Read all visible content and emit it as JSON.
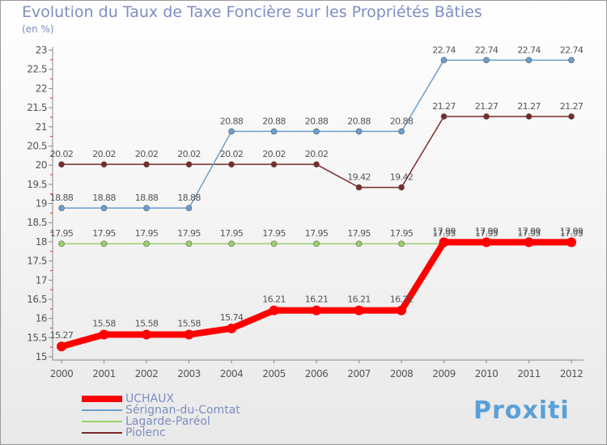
{
  "chart_data": {
    "type": "line",
    "title": "Evolution du Taux de Taxe Foncière sur les Propriétés Bâties",
    "unit_label": "(en %)",
    "xlabel": "",
    "ylabel": "",
    "x": [
      "2000",
      "2001",
      "2002",
      "2003",
      "2004",
      "2005",
      "2006",
      "2007",
      "2008",
      "2009",
      "2010",
      "2011",
      "2012"
    ],
    "ylim": [
      15,
      23
    ],
    "yticks": [
      "15",
      "15.5",
      "16",
      "16.5",
      "17",
      "17.5",
      "18",
      "18.5",
      "19",
      "19.5",
      "20",
      "20.5",
      "21",
      "21.5",
      "22",
      "22.5",
      "23"
    ],
    "series": [
      {
        "name": "UCHAUX",
        "color": "#ff0000",
        "values": [
          15.27,
          15.58,
          15.58,
          15.58,
          15.74,
          16.21,
          16.21,
          16.21,
          16.21,
          17.99,
          17.99,
          17.99,
          17.99
        ],
        "labels": [
          "15.27",
          "15.58",
          "15.58",
          "15.58",
          "15.74",
          "16.21",
          "16.21",
          "16.21",
          "16.21",
          "17.99",
          "17.99",
          "17.99",
          "17.99"
        ]
      },
      {
        "name": "Sérignan-du-Comtat",
        "color": "#6a9fd0",
        "values": [
          18.88,
          18.88,
          18.88,
          18.88,
          20.88,
          20.88,
          20.88,
          20.88,
          20.88,
          22.74,
          22.74,
          22.74,
          22.74
        ],
        "labels": [
          "18.88",
          "18.88",
          "18.88",
          "18.88",
          "20.88",
          "20.88",
          "20.88",
          "20.88",
          "20.88",
          "22.74",
          "22.74",
          "22.74",
          "22.74"
        ]
      },
      {
        "name": "Lagarde-Paréol",
        "color": "#99d26a",
        "values": [
          17.95,
          17.95,
          17.95,
          17.95,
          17.95,
          17.95,
          17.95,
          17.95,
          17.95,
          17.95,
          17.95,
          17.95,
          17.95
        ],
        "labels": [
          "17.95",
          "17.95",
          "17.95",
          "17.95",
          "17.95",
          "17.95",
          "17.95",
          "17.95",
          "17.95",
          "17.95",
          "17.95",
          "17.95",
          "17.95"
        ]
      },
      {
        "name": "Piolenc",
        "color": "#7a2a2a",
        "values": [
          20.02,
          20.02,
          20.02,
          20.02,
          20.02,
          20.02,
          20.02,
          19.42,
          19.42,
          21.27,
          21.27,
          21.27,
          21.27
        ],
        "labels": [
          "20.02",
          "20.02",
          "20.02",
          "20.02",
          "20.02",
          "20.02",
          "20.02",
          "19.42",
          "19.42",
          "21.27",
          "21.27",
          "21.27",
          "21.27"
        ]
      }
    ],
    "legend_position": "bottom-left",
    "grid": false
  },
  "logo": {
    "text": "Proxiti"
  }
}
